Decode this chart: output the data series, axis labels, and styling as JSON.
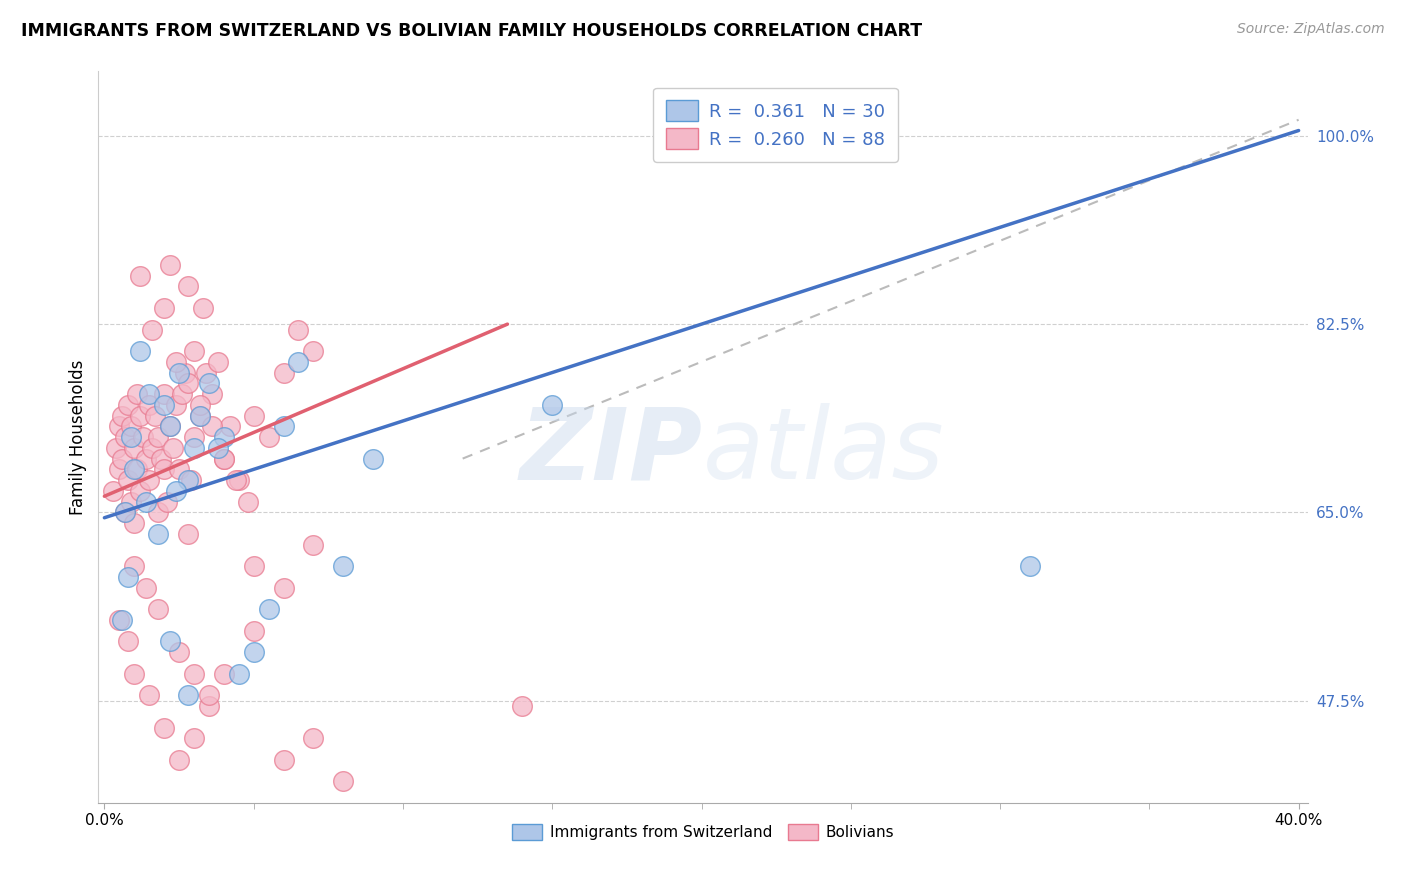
{
  "title": "IMMIGRANTS FROM SWITZERLAND VS BOLIVIAN FAMILY HOUSEHOLDS CORRELATION CHART",
  "source": "Source: ZipAtlas.com",
  "ylabel": "Family Households",
  "y_ticks": [
    "100.0%",
    "82.5%",
    "65.0%",
    "47.5%"
  ],
  "y_tick_vals": [
    1.0,
    0.825,
    0.65,
    0.475
  ],
  "x_range": [
    0.0,
    0.4
  ],
  "y_range": [
    0.38,
    1.06
  ],
  "legend_blue_r": "R =  0.361",
  "legend_blue_n": "N = 30",
  "legend_pink_r": "R =  0.260",
  "legend_pink_n": "N = 88",
  "blue_fill_color": "#aec6e8",
  "pink_fill_color": "#f4b8c8",
  "blue_edge_color": "#5b9bd5",
  "pink_edge_color": "#e87a90",
  "blue_line_color": "#4472c4",
  "pink_line_color": "#e06070",
  "ref_line_color": "#bbbbbb",
  "watermark_color": "#d0dff0",
  "blue_line_x0": 0.0,
  "blue_line_y0": 0.645,
  "blue_line_x1": 0.4,
  "blue_line_y1": 1.005,
  "pink_line_x0": 0.0,
  "pink_line_y0": 0.665,
  "pink_line_x1": 0.135,
  "pink_line_y1": 0.825,
  "ref_line_x0": 0.12,
  "ref_line_y0": 0.7,
  "ref_line_x1": 0.4,
  "ref_line_y1": 1.015,
  "blue_scatter_x": [
    0.007,
    0.009,
    0.01,
    0.015,
    0.02,
    0.022,
    0.025,
    0.028,
    0.03,
    0.032,
    0.035,
    0.04,
    0.012,
    0.05,
    0.06,
    0.065,
    0.08,
    0.09,
    0.045,
    0.022,
    0.028,
    0.15,
    0.31,
    0.024,
    0.018,
    0.008,
    0.006,
    0.014,
    0.038,
    0.055
  ],
  "blue_scatter_y": [
    0.65,
    0.72,
    0.69,
    0.76,
    0.75,
    0.73,
    0.78,
    0.68,
    0.71,
    0.74,
    0.77,
    0.72,
    0.8,
    0.52,
    0.73,
    0.79,
    0.6,
    0.7,
    0.5,
    0.53,
    0.48,
    0.75,
    0.6,
    0.67,
    0.63,
    0.59,
    0.55,
    0.66,
    0.71,
    0.56
  ],
  "pink_scatter_x": [
    0.003,
    0.004,
    0.005,
    0.005,
    0.006,
    0.006,
    0.007,
    0.007,
    0.008,
    0.008,
    0.009,
    0.009,
    0.01,
    0.01,
    0.011,
    0.011,
    0.012,
    0.012,
    0.013,
    0.014,
    0.015,
    0.015,
    0.016,
    0.017,
    0.018,
    0.018,
    0.019,
    0.02,
    0.02,
    0.021,
    0.022,
    0.023,
    0.024,
    0.025,
    0.026,
    0.027,
    0.028,
    0.029,
    0.03,
    0.03,
    0.032,
    0.034,
    0.036,
    0.038,
    0.04,
    0.042,
    0.045,
    0.05,
    0.055,
    0.06,
    0.065,
    0.07,
    0.005,
    0.008,
    0.01,
    0.015,
    0.02,
    0.025,
    0.03,
    0.035,
    0.04,
    0.05,
    0.06,
    0.07,
    0.022,
    0.028,
    0.033,
    0.012,
    0.016,
    0.02,
    0.024,
    0.028,
    0.032,
    0.036,
    0.04,
    0.044,
    0.048,
    0.01,
    0.014,
    0.018,
    0.025,
    0.03,
    0.035,
    0.05,
    0.06,
    0.07,
    0.08,
    0.14
  ],
  "pink_scatter_y": [
    0.67,
    0.71,
    0.69,
    0.73,
    0.7,
    0.74,
    0.65,
    0.72,
    0.68,
    0.75,
    0.66,
    0.73,
    0.64,
    0.71,
    0.69,
    0.76,
    0.67,
    0.74,
    0.72,
    0.7,
    0.75,
    0.68,
    0.71,
    0.74,
    0.65,
    0.72,
    0.7,
    0.76,
    0.69,
    0.66,
    0.73,
    0.71,
    0.75,
    0.69,
    0.76,
    0.78,
    0.63,
    0.68,
    0.72,
    0.8,
    0.74,
    0.78,
    0.76,
    0.79,
    0.7,
    0.73,
    0.68,
    0.74,
    0.72,
    0.78,
    0.82,
    0.8,
    0.55,
    0.53,
    0.5,
    0.48,
    0.45,
    0.42,
    0.44,
    0.47,
    0.5,
    0.54,
    0.58,
    0.62,
    0.88,
    0.86,
    0.84,
    0.87,
    0.82,
    0.84,
    0.79,
    0.77,
    0.75,
    0.73,
    0.7,
    0.68,
    0.66,
    0.6,
    0.58,
    0.56,
    0.52,
    0.5,
    0.48,
    0.6,
    0.42,
    0.44,
    0.4,
    0.47
  ]
}
